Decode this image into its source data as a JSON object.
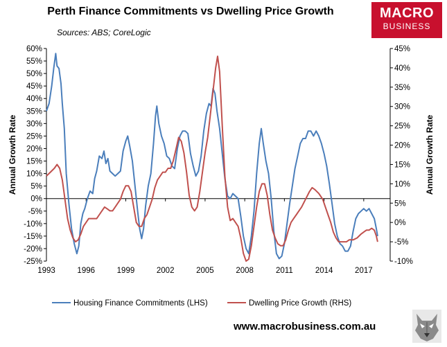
{
  "header": {
    "title": "Perth Finance Commitments vs Dwelling Price Growth",
    "source": "Sources: ABS; CoreLogic"
  },
  "brand": {
    "line1": "MACRO",
    "line2": "BUSINESS",
    "color": "#c8102e"
  },
  "footer": {
    "url": "www.macrobusiness.com.au",
    "mascot_icon": "wolf-head-icon"
  },
  "chart_data": {
    "type": "line",
    "ylabel_left": "Annual Growth Rate",
    "ylabel_right": "Annual Growth Rate",
    "ylim_left": [
      -0.25,
      0.6
    ],
    "ylim_right": [
      -0.1,
      0.45
    ],
    "yticks_left": [
      "60%",
      "55%",
      "50%",
      "45%",
      "40%",
      "35%",
      "30%",
      "25%",
      "20%",
      "15%",
      "10%",
      "5%",
      "0%",
      "-5%",
      "-10%",
      "-15%",
      "-20%",
      "-25%"
    ],
    "yticks_right": [
      "45%",
      "40%",
      "35%",
      "30%",
      "25%",
      "20%",
      "15%",
      "10%",
      "5%",
      "0%",
      "-5%",
      "-10%"
    ],
    "xlim": [
      1993.0,
      2019.0
    ],
    "xticks": [
      "1993",
      "1996",
      "1999",
      "2002",
      "2005",
      "2008",
      "2011",
      "2014",
      "2017"
    ],
    "legend_position": "bottom",
    "grid": false,
    "series": [
      {
        "name": "Housing Finance Commitments (LHS)",
        "axis": "left",
        "color": "#4a7ebb",
        "points": [
          [
            1993.0,
            0.35
          ],
          [
            1993.2,
            0.38
          ],
          [
            1993.4,
            0.45
          ],
          [
            1993.55,
            0.52
          ],
          [
            1993.7,
            0.58
          ],
          [
            1993.8,
            0.53
          ],
          [
            1993.95,
            0.52
          ],
          [
            1994.1,
            0.46
          ],
          [
            1994.2,
            0.38
          ],
          [
            1994.35,
            0.28
          ],
          [
            1994.5,
            0.1
          ],
          [
            1994.7,
            -0.02
          ],
          [
            1994.9,
            -0.12
          ],
          [
            1995.1,
            -0.18
          ],
          [
            1995.3,
            -0.22
          ],
          [
            1995.45,
            -0.19
          ],
          [
            1995.6,
            -0.1
          ],
          [
            1995.75,
            -0.06
          ],
          [
            1995.9,
            -0.04
          ],
          [
            1996.1,
            0.0
          ],
          [
            1996.3,
            0.03
          ],
          [
            1996.5,
            0.02
          ],
          [
            1996.65,
            0.08
          ],
          [
            1996.8,
            0.11
          ],
          [
            1997.0,
            0.17
          ],
          [
            1997.2,
            0.16
          ],
          [
            1997.35,
            0.19
          ],
          [
            1997.5,
            0.14
          ],
          [
            1997.65,
            0.16
          ],
          [
            1997.8,
            0.11
          ],
          [
            1998.0,
            0.1
          ],
          [
            1998.2,
            0.09
          ],
          [
            1998.4,
            0.1
          ],
          [
            1998.6,
            0.11
          ],
          [
            1998.8,
            0.19
          ],
          [
            1999.0,
            0.23
          ],
          [
            1999.15,
            0.25
          ],
          [
            1999.3,
            0.21
          ],
          [
            1999.5,
            0.15
          ],
          [
            1999.7,
            0.05
          ],
          [
            1999.9,
            -0.05
          ],
          [
            2000.05,
            -0.12
          ],
          [
            2000.2,
            -0.16
          ],
          [
            2000.35,
            -0.12
          ],
          [
            2000.5,
            -0.03
          ],
          [
            2000.7,
            0.05
          ],
          [
            2000.9,
            0.1
          ],
          [
            2001.1,
            0.22
          ],
          [
            2001.25,
            0.33
          ],
          [
            2001.35,
            0.37
          ],
          [
            2001.5,
            0.3
          ],
          [
            2001.7,
            0.25
          ],
          [
            2001.9,
            0.22
          ],
          [
            2002.1,
            0.17
          ],
          [
            2002.3,
            0.16
          ],
          [
            2002.5,
            0.13
          ],
          [
            2002.7,
            0.12
          ],
          [
            2002.9,
            0.2
          ],
          [
            2003.1,
            0.25
          ],
          [
            2003.3,
            0.27
          ],
          [
            2003.5,
            0.27
          ],
          [
            2003.7,
            0.26
          ],
          [
            2003.9,
            0.18
          ],
          [
            2004.1,
            0.13
          ],
          [
            2004.3,
            0.09
          ],
          [
            2004.5,
            0.11
          ],
          [
            2004.7,
            0.17
          ],
          [
            2004.9,
            0.27
          ],
          [
            2005.1,
            0.34
          ],
          [
            2005.3,
            0.38
          ],
          [
            2005.45,
            0.37
          ],
          [
            2005.6,
            0.44
          ],
          [
            2005.75,
            0.42
          ],
          [
            2005.9,
            0.35
          ],
          [
            2006.1,
            0.28
          ],
          [
            2006.3,
            0.18
          ],
          [
            2006.5,
            0.08
          ],
          [
            2006.7,
            0.01
          ],
          [
            2006.9,
            0.0
          ],
          [
            2007.1,
            0.02
          ],
          [
            2007.3,
            0.01
          ],
          [
            2007.5,
            0.0
          ],
          [
            2007.7,
            -0.07
          ],
          [
            2007.9,
            -0.15
          ],
          [
            2008.1,
            -0.2
          ],
          [
            2008.3,
            -0.22
          ],
          [
            2008.5,
            -0.15
          ],
          [
            2008.7,
            -0.05
          ],
          [
            2008.9,
            0.1
          ],
          [
            2009.1,
            0.22
          ],
          [
            2009.25,
            0.28
          ],
          [
            2009.4,
            0.22
          ],
          [
            2009.6,
            0.15
          ],
          [
            2009.8,
            0.1
          ],
          [
            2010.0,
            0.0
          ],
          [
            2010.2,
            -0.13
          ],
          [
            2010.4,
            -0.22
          ],
          [
            2010.6,
            -0.24
          ],
          [
            2010.8,
            -0.23
          ],
          [
            2011.0,
            -0.18
          ],
          [
            2011.2,
            -0.1
          ],
          [
            2011.4,
            -0.02
          ],
          [
            2011.6,
            0.05
          ],
          [
            2011.8,
            0.12
          ],
          [
            2012.0,
            0.17
          ],
          [
            2012.2,
            0.22
          ],
          [
            2012.4,
            0.24
          ],
          [
            2012.6,
            0.24
          ],
          [
            2012.8,
            0.27
          ],
          [
            2013.0,
            0.27
          ],
          [
            2013.2,
            0.25
          ],
          [
            2013.4,
            0.27
          ],
          [
            2013.6,
            0.25
          ],
          [
            2013.8,
            0.22
          ],
          [
            2014.0,
            0.18
          ],
          [
            2014.2,
            0.13
          ],
          [
            2014.4,
            0.06
          ],
          [
            2014.6,
            -0.02
          ],
          [
            2014.8,
            -0.1
          ],
          [
            2015.0,
            -0.15
          ],
          [
            2015.2,
            -0.18
          ],
          [
            2015.4,
            -0.19
          ],
          [
            2015.6,
            -0.21
          ],
          [
            2015.8,
            -0.21
          ],
          [
            2016.0,
            -0.19
          ],
          [
            2016.2,
            -0.13
          ],
          [
            2016.4,
            -0.08
          ],
          [
            2016.6,
            -0.06
          ],
          [
            2016.8,
            -0.05
          ],
          [
            2017.0,
            -0.04
          ],
          [
            2017.2,
            -0.05
          ],
          [
            2017.4,
            -0.04
          ],
          [
            2017.6,
            -0.06
          ],
          [
            2017.8,
            -0.08
          ],
          [
            2017.95,
            -0.12
          ],
          [
            2018.05,
            -0.15
          ]
        ]
      },
      {
        "name": "Dwelling Price Growth (RHS)",
        "axis": "right",
        "color": "#c0504d",
        "points": [
          [
            1993.0,
            0.12
          ],
          [
            1993.3,
            0.13
          ],
          [
            1993.6,
            0.14
          ],
          [
            1993.8,
            0.15
          ],
          [
            1994.0,
            0.14
          ],
          [
            1994.2,
            0.11
          ],
          [
            1994.4,
            0.06
          ],
          [
            1994.6,
            0.01
          ],
          [
            1994.8,
            -0.02
          ],
          [
            1995.0,
            -0.04
          ],
          [
            1995.2,
            -0.05
          ],
          [
            1995.4,
            -0.045
          ],
          [
            1995.6,
            -0.03
          ],
          [
            1995.8,
            -0.01
          ],
          [
            1996.0,
            0.0
          ],
          [
            1996.2,
            0.01
          ],
          [
            1996.5,
            0.01
          ],
          [
            1996.8,
            0.01
          ],
          [
            1997.0,
            0.02
          ],
          [
            1997.2,
            0.03
          ],
          [
            1997.4,
            0.04
          ],
          [
            1997.6,
            0.035
          ],
          [
            1997.8,
            0.03
          ],
          [
            1998.0,
            0.03
          ],
          [
            1998.2,
            0.04
          ],
          [
            1998.4,
            0.05
          ],
          [
            1998.6,
            0.06
          ],
          [
            1998.8,
            0.08
          ],
          [
            1999.0,
            0.095
          ],
          [
            1999.2,
            0.095
          ],
          [
            1999.4,
            0.08
          ],
          [
            1999.6,
            0.04
          ],
          [
            1999.8,
            0.0
          ],
          [
            2000.0,
            -0.01
          ],
          [
            2000.2,
            -0.01
          ],
          [
            2000.4,
            0.01
          ],
          [
            2000.6,
            0.02
          ],
          [
            2000.8,
            0.04
          ],
          [
            2001.0,
            0.06
          ],
          [
            2001.2,
            0.09
          ],
          [
            2001.4,
            0.11
          ],
          [
            2001.6,
            0.12
          ],
          [
            2001.8,
            0.13
          ],
          [
            2002.0,
            0.13
          ],
          [
            2002.2,
            0.14
          ],
          [
            2002.4,
            0.14
          ],
          [
            2002.6,
            0.16
          ],
          [
            2002.8,
            0.19
          ],
          [
            2003.0,
            0.22
          ],
          [
            2003.2,
            0.21
          ],
          [
            2003.4,
            0.18
          ],
          [
            2003.6,
            0.13
          ],
          [
            2003.8,
            0.07
          ],
          [
            2004.0,
            0.04
          ],
          [
            2004.2,
            0.03
          ],
          [
            2004.4,
            0.04
          ],
          [
            2004.6,
            0.08
          ],
          [
            2004.8,
            0.13
          ],
          [
            2005.0,
            0.18
          ],
          [
            2005.2,
            0.22
          ],
          [
            2005.4,
            0.28
          ],
          [
            2005.6,
            0.34
          ],
          [
            2005.8,
            0.4
          ],
          [
            2005.95,
            0.43
          ],
          [
            2006.1,
            0.39
          ],
          [
            2006.3,
            0.25
          ],
          [
            2006.5,
            0.12
          ],
          [
            2006.7,
            0.04
          ],
          [
            2006.9,
            0.005
          ],
          [
            2007.1,
            0.01
          ],
          [
            2007.3,
            0.0
          ],
          [
            2007.5,
            -0.01
          ],
          [
            2007.7,
            -0.04
          ],
          [
            2007.9,
            -0.08
          ],
          [
            2008.1,
            -0.1
          ],
          [
            2008.3,
            -0.095
          ],
          [
            2008.5,
            -0.06
          ],
          [
            2008.7,
            -0.01
          ],
          [
            2008.9,
            0.04
          ],
          [
            2009.1,
            0.08
          ],
          [
            2009.3,
            0.1
          ],
          [
            2009.5,
            0.1
          ],
          [
            2009.7,
            0.07
          ],
          [
            2009.9,
            0.02
          ],
          [
            2010.1,
            -0.02
          ],
          [
            2010.3,
            -0.04
          ],
          [
            2010.5,
            -0.055
          ],
          [
            2010.7,
            -0.06
          ],
          [
            2010.9,
            -0.06
          ],
          [
            2011.1,
            -0.045
          ],
          [
            2011.3,
            -0.02
          ],
          [
            2011.5,
            0.0
          ],
          [
            2011.7,
            0.01
          ],
          [
            2011.9,
            0.02
          ],
          [
            2012.1,
            0.03
          ],
          [
            2012.3,
            0.04
          ],
          [
            2012.6,
            0.06
          ],
          [
            2012.9,
            0.08
          ],
          [
            2013.1,
            0.09
          ],
          [
            2013.3,
            0.085
          ],
          [
            2013.6,
            0.075
          ],
          [
            2013.9,
            0.06
          ],
          [
            2014.1,
            0.04
          ],
          [
            2014.3,
            0.02
          ],
          [
            2014.5,
            0.0
          ],
          [
            2014.7,
            -0.025
          ],
          [
            2014.9,
            -0.04
          ],
          [
            2015.1,
            -0.05
          ],
          [
            2015.4,
            -0.05
          ],
          [
            2015.7,
            -0.05
          ],
          [
            2015.9,
            -0.045
          ],
          [
            2016.2,
            -0.045
          ],
          [
            2016.5,
            -0.04
          ],
          [
            2016.8,
            -0.03
          ],
          [
            2017.0,
            -0.025
          ],
          [
            2017.2,
            -0.02
          ],
          [
            2017.4,
            -0.02
          ],
          [
            2017.6,
            -0.015
          ],
          [
            2017.8,
            -0.02
          ],
          [
            2017.95,
            -0.035
          ],
          [
            2018.05,
            -0.05
          ]
        ]
      }
    ]
  }
}
